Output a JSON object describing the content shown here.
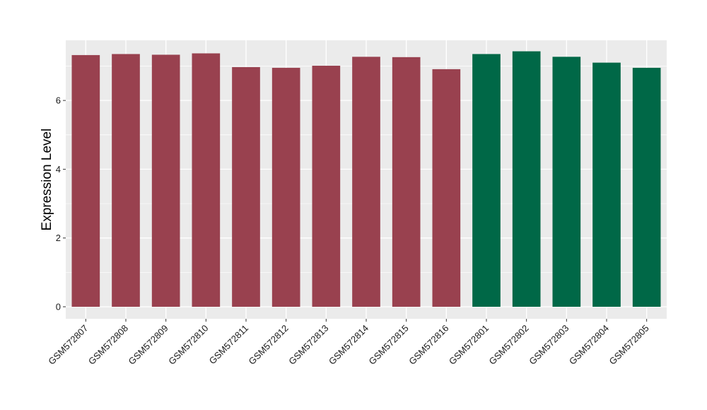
{
  "chart_data": {
    "type": "bar",
    "xlabel": "",
    "ylabel": "Expression Level",
    "ylim": [
      -0.35,
      7.75
    ],
    "yticks": [
      0,
      2,
      4,
      6
    ],
    "ytick_labels": [
      "0",
      "2",
      "4",
      "6"
    ],
    "categories": [
      "GSM572807",
      "GSM572808",
      "GSM572809",
      "GSM572810",
      "GSM572811",
      "GSM572812",
      "GSM572813",
      "GSM572814",
      "GSM572815",
      "GSM572816",
      "GSM572801",
      "GSM572802",
      "GSM572803",
      "GSM572804",
      "GSM572805"
    ],
    "values": [
      7.32,
      7.35,
      7.33,
      7.37,
      6.97,
      6.95,
      7.01,
      7.27,
      7.26,
      6.91,
      7.35,
      7.43,
      7.27,
      7.1,
      6.95
    ],
    "groups": [
      "a",
      "a",
      "a",
      "a",
      "a",
      "a",
      "a",
      "a",
      "a",
      "a",
      "b",
      "b",
      "b",
      "b",
      "b"
    ],
    "group_colors": {
      "a": "#99414f",
      "b": "#006847"
    },
    "panel_background": "#ebebeb",
    "gridline_color": "#ffffff",
    "grid": true,
    "legend": "none"
  }
}
